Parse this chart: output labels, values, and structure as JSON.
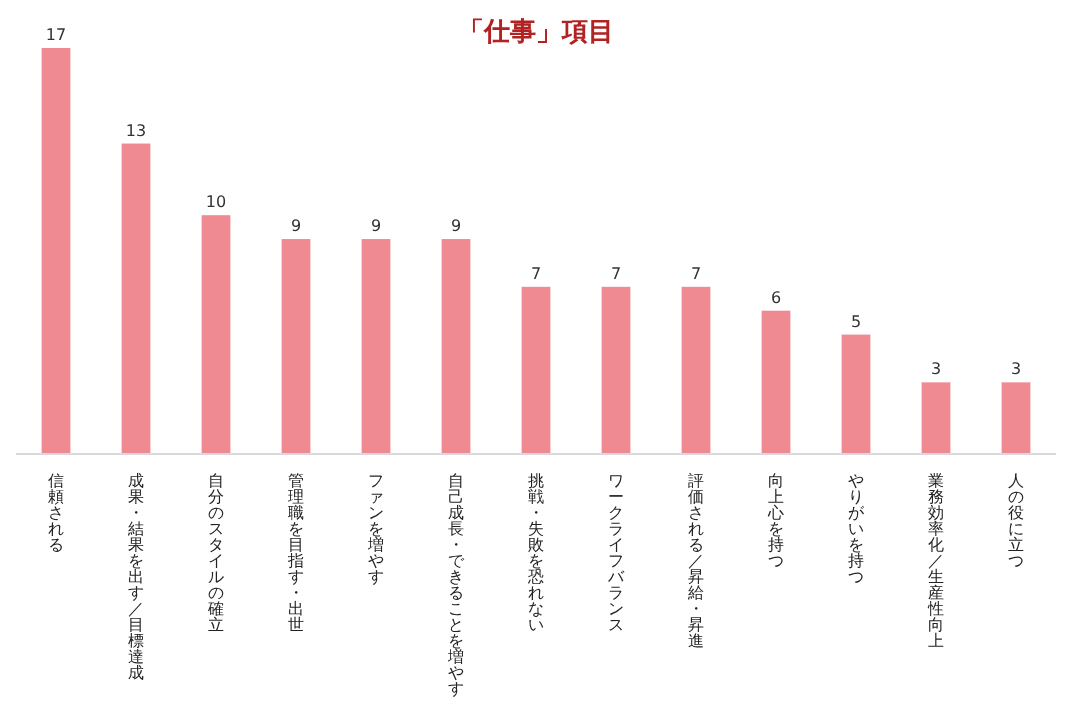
{
  "chart_data": {
    "type": "bar",
    "title": "「仕事」項目",
    "categories": [
      "信頼される",
      "成果・結果を出す／目標達成",
      "自分のスタイルの確立",
      "管理職を目指す・出世",
      "ファンを増やす",
      "自己成長・できることを増やす",
      "挑戦・失敗を恐れない",
      "ワークライフバランス",
      "評価される／昇給・昇進",
      "向上心を持つ",
      "やりがいを持つ",
      "業務効率化／生産性向上",
      "人の役に立つ"
    ],
    "values": [
      17,
      13,
      10,
      9,
      9,
      9,
      7,
      7,
      7,
      6,
      5,
      3,
      3
    ],
    "color": "#f08a92",
    "data_labels": true
  }
}
